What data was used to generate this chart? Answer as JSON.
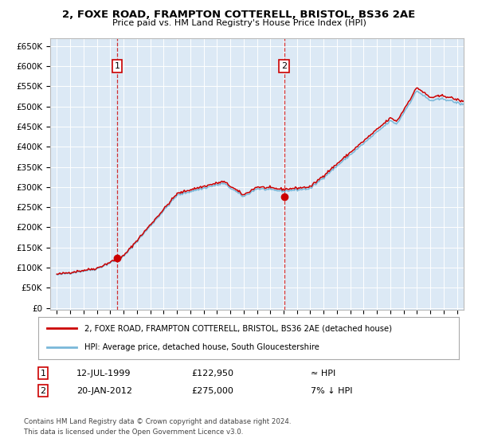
{
  "title": "2, FOXE ROAD, FRAMPTON COTTERELL, BRISTOL, BS36 2AE",
  "subtitle": "Price paid vs. HM Land Registry's House Price Index (HPI)",
  "bg_color": "#dce9f5",
  "y_ticks": [
    0,
    50000,
    100000,
    150000,
    200000,
    250000,
    300000,
    350000,
    400000,
    450000,
    500000,
    550000,
    600000,
    650000
  ],
  "y_tick_labels": [
    "£0",
    "£50K",
    "£100K",
    "£150K",
    "£200K",
    "£250K",
    "£300K",
    "£350K",
    "£400K",
    "£450K",
    "£500K",
    "£550K",
    "£600K",
    "£650K"
  ],
  "sale1_date": 1999.53,
  "sale1_price": 122950,
  "sale1_label": "1",
  "sale2_date": 2012.05,
  "sale2_price": 275000,
  "sale2_label": "2",
  "hpi_line_color": "#7ab8d9",
  "sale_line_color": "#cc0000",
  "legend_label1": "2, FOXE ROAD, FRAMPTON COTTERELL, BRISTOL, BS36 2AE (detached house)",
  "legend_label2": "HPI: Average price, detached house, South Gloucestershire",
  "footnote1": "Contains HM Land Registry data © Crown copyright and database right 2024.",
  "footnote2": "This data is licensed under the Open Government Licence v3.0.",
  "table_row1": [
    "1",
    "12-JUL-1999",
    "£122,950",
    "≈ HPI"
  ],
  "table_row2": [
    "2",
    "20-JAN-2012",
    "£275,000",
    "7% ↓ HPI"
  ],
  "x_start": 1994.5,
  "x_end": 2025.5,
  "x_ticks": [
    1995,
    1996,
    1997,
    1998,
    1999,
    2000,
    2001,
    2002,
    2003,
    2004,
    2005,
    2006,
    2007,
    2008,
    2009,
    2010,
    2011,
    2012,
    2013,
    2014,
    2015,
    2016,
    2017,
    2018,
    2019,
    2020,
    2021,
    2022,
    2023,
    2024,
    2025
  ]
}
